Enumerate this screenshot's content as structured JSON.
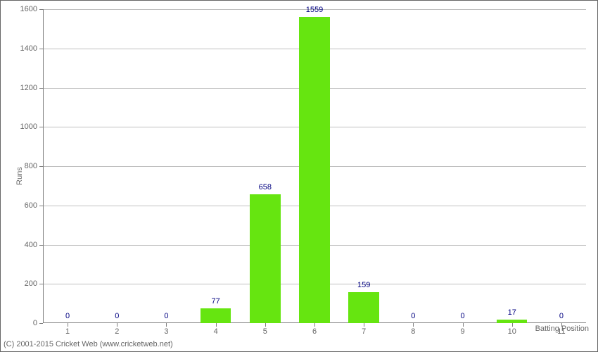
{
  "chart": {
    "type": "bar",
    "categories": [
      "1",
      "2",
      "3",
      "4",
      "5",
      "6",
      "7",
      "8",
      "9",
      "10",
      "11"
    ],
    "values": [
      0,
      0,
      0,
      77,
      658,
      1559,
      159,
      0,
      0,
      17,
      0
    ],
    "bar_color": "#66e510",
    "value_label_color": "#000080",
    "value_label_fontsize": 11,
    "axis_label_color": "#666666",
    "axis_label_fontsize": 11,
    "grid_color": "#c0c0c0",
    "axis_color": "#808080",
    "background_color": "#ffffff",
    "border_color": "#666666",
    "xlabel": "Batting Position",
    "ylabel": "Runs",
    "ylim": [
      0,
      1600
    ],
    "ytick_step": 200,
    "bar_width_ratio": 0.62
  },
  "footer": "(C) 2001-2015 Cricket Web (www.cricketweb.net)"
}
